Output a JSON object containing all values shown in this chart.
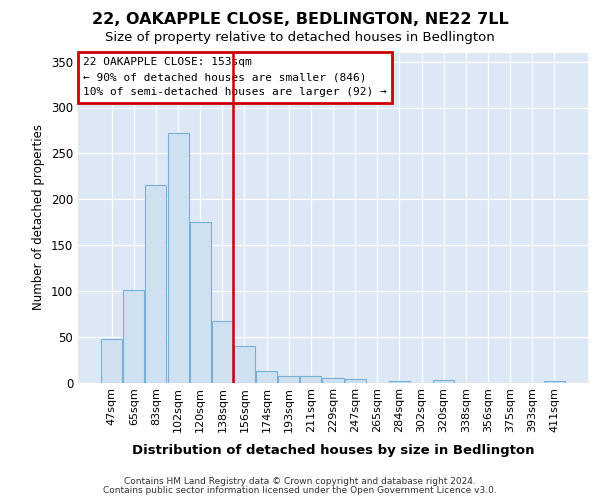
{
  "title": "22, OAKAPPLE CLOSE, BEDLINGTON, NE22 7LL",
  "subtitle": "Size of property relative to detached houses in Bedlington",
  "xlabel": "Distribution of detached houses by size in Bedlington",
  "ylabel": "Number of detached properties",
  "categories": [
    "47sqm",
    "65sqm",
    "83sqm",
    "102sqm",
    "120sqm",
    "138sqm",
    "156sqm",
    "174sqm",
    "193sqm",
    "211sqm",
    "229sqm",
    "247sqm",
    "265sqm",
    "284sqm",
    "302sqm",
    "320sqm",
    "338sqm",
    "356sqm",
    "375sqm",
    "393sqm",
    "411sqm"
  ],
  "values": [
    47,
    101,
    215,
    272,
    175,
    67,
    40,
    13,
    7,
    7,
    5,
    4,
    0,
    2,
    0,
    3,
    0,
    0,
    0,
    0,
    2
  ],
  "bar_color": "#cfe0f0",
  "bar_edge_color": "#7ab0d8",
  "fig_bg": "#ffffff",
  "ax_bg": "#dce8f5",
  "grid_color": "#ffffff",
  "vline_x": 6.0,
  "vline_color": "#cc0000",
  "annotation_line1": "22 OAKAPPLE CLOSE: 153sqm",
  "annotation_line2": "← 90% of detached houses are smaller (846)",
  "annotation_line3": "10% of semi-detached houses are larger (92) →",
  "ann_edge_color": "#cc0000",
  "ylim": [
    0,
    360
  ],
  "yticks": [
    0,
    50,
    100,
    150,
    200,
    250,
    300,
    350
  ],
  "footer1": "Contains HM Land Registry data © Crown copyright and database right 2024.",
  "footer2": "Contains public sector information licensed under the Open Government Licence v3.0."
}
